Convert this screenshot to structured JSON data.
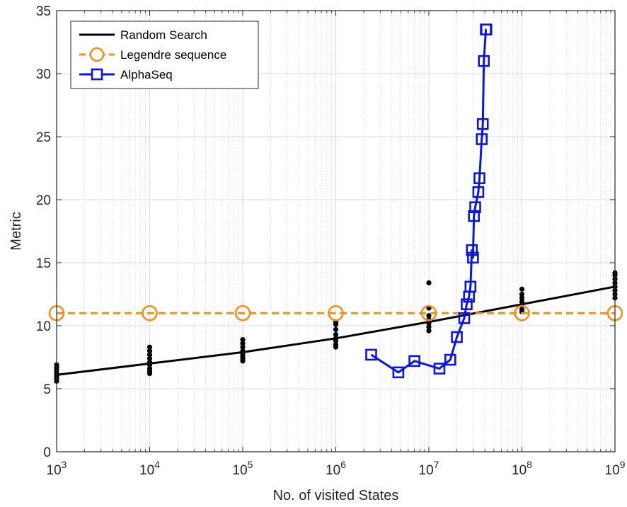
{
  "chart_data": {
    "type": "line",
    "xlabel": "No. of visited States",
    "ylabel": "Metric",
    "xscale": "log",
    "xlim": [
      1000,
      1000000000
    ],
    "ylim": [
      0,
      35
    ],
    "grid": true,
    "legend_position": "top-left",
    "x_tick_labels": [
      {
        "value": 1000,
        "base": "10",
        "exp": "3"
      },
      {
        "value": 10000,
        "base": "10",
        "exp": "4"
      },
      {
        "value": 100000,
        "base": "10",
        "exp": "5"
      },
      {
        "value": 1000000,
        "base": "10",
        "exp": "6"
      },
      {
        "value": 10000000,
        "base": "10",
        "exp": "7"
      },
      {
        "value": 100000000,
        "base": "10",
        "exp": "8"
      },
      {
        "value": 1000000000,
        "base": "10",
        "exp": "9"
      }
    ],
    "y_ticks": [
      0,
      5,
      10,
      15,
      20,
      25,
      30,
      35
    ],
    "series": [
      {
        "name": "Random Search",
        "style": "solid",
        "marker": "none",
        "color": "#000000",
        "x": [
          1000,
          10000,
          100000,
          1000000,
          10000000,
          100000000,
          1000000000
        ],
        "y": [
          6.1,
          7.0,
          7.9,
          9.0,
          10.3,
          11.7,
          13.1
        ]
      },
      {
        "name": "Legendre sequence",
        "style": "dashed",
        "marker": "circle",
        "color": "#f28e1c",
        "x": [
          1000,
          10000,
          100000,
          1000000,
          10000000,
          100000000,
          1000000000
        ],
        "y": [
          11,
          11,
          11,
          11,
          11,
          11,
          11
        ]
      },
      {
        "name": "AlphaSeq",
        "style": "solid",
        "marker": "square",
        "color": "#0a14e6",
        "x": [
          2400000,
          4700000,
          7000000,
          13000000,
          17000000,
          20000000,
          24000000,
          25500000,
          27000000,
          28000000,
          29000000,
          29800000,
          30500000,
          31500000,
          34000000,
          35000000,
          37000000,
          38000000,
          39000000,
          41000000,
          41500000
        ],
        "y": [
          7.7,
          6.3,
          7.2,
          6.6,
          7.3,
          9.1,
          10.6,
          11.7,
          12.3,
          13.1,
          16.0,
          15.4,
          18.7,
          19.4,
          20.6,
          21.7,
          24.8,
          26.0,
          31.0,
          33.5,
          33.5
        ]
      }
    ],
    "random_search_scatter": [
      {
        "x": 1000,
        "y": [
          5.6,
          5.8,
          6.0,
          6.1,
          6.3,
          6.5,
          6.7,
          6.9
        ]
      },
      {
        "x": 10000,
        "y": [
          6.2,
          6.4,
          6.6,
          6.9,
          7.1,
          7.4,
          7.7,
          8.0,
          8.3
        ]
      },
      {
        "x": 100000,
        "y": [
          7.2,
          7.4,
          7.6,
          7.8,
          8.0,
          8.3,
          8.6,
          8.9
        ]
      },
      {
        "x": 1000000,
        "y": [
          8.3,
          8.5,
          8.8,
          9.0,
          9.3,
          9.7,
          10.1,
          10.3
        ]
      },
      {
        "x": 10000000,
        "y": [
          9.6,
          9.9,
          10.2,
          10.5,
          10.8,
          11.4,
          13.4
        ]
      },
      {
        "x": 100000000,
        "y": [
          11.1,
          11.3,
          11.6,
          11.9,
          12.2,
          12.5,
          12.9
        ]
      },
      {
        "x": 1000000000,
        "y": [
          12.2,
          12.5,
          12.8,
          13.1,
          13.4,
          13.7,
          14.0,
          14.2
        ]
      }
    ]
  }
}
